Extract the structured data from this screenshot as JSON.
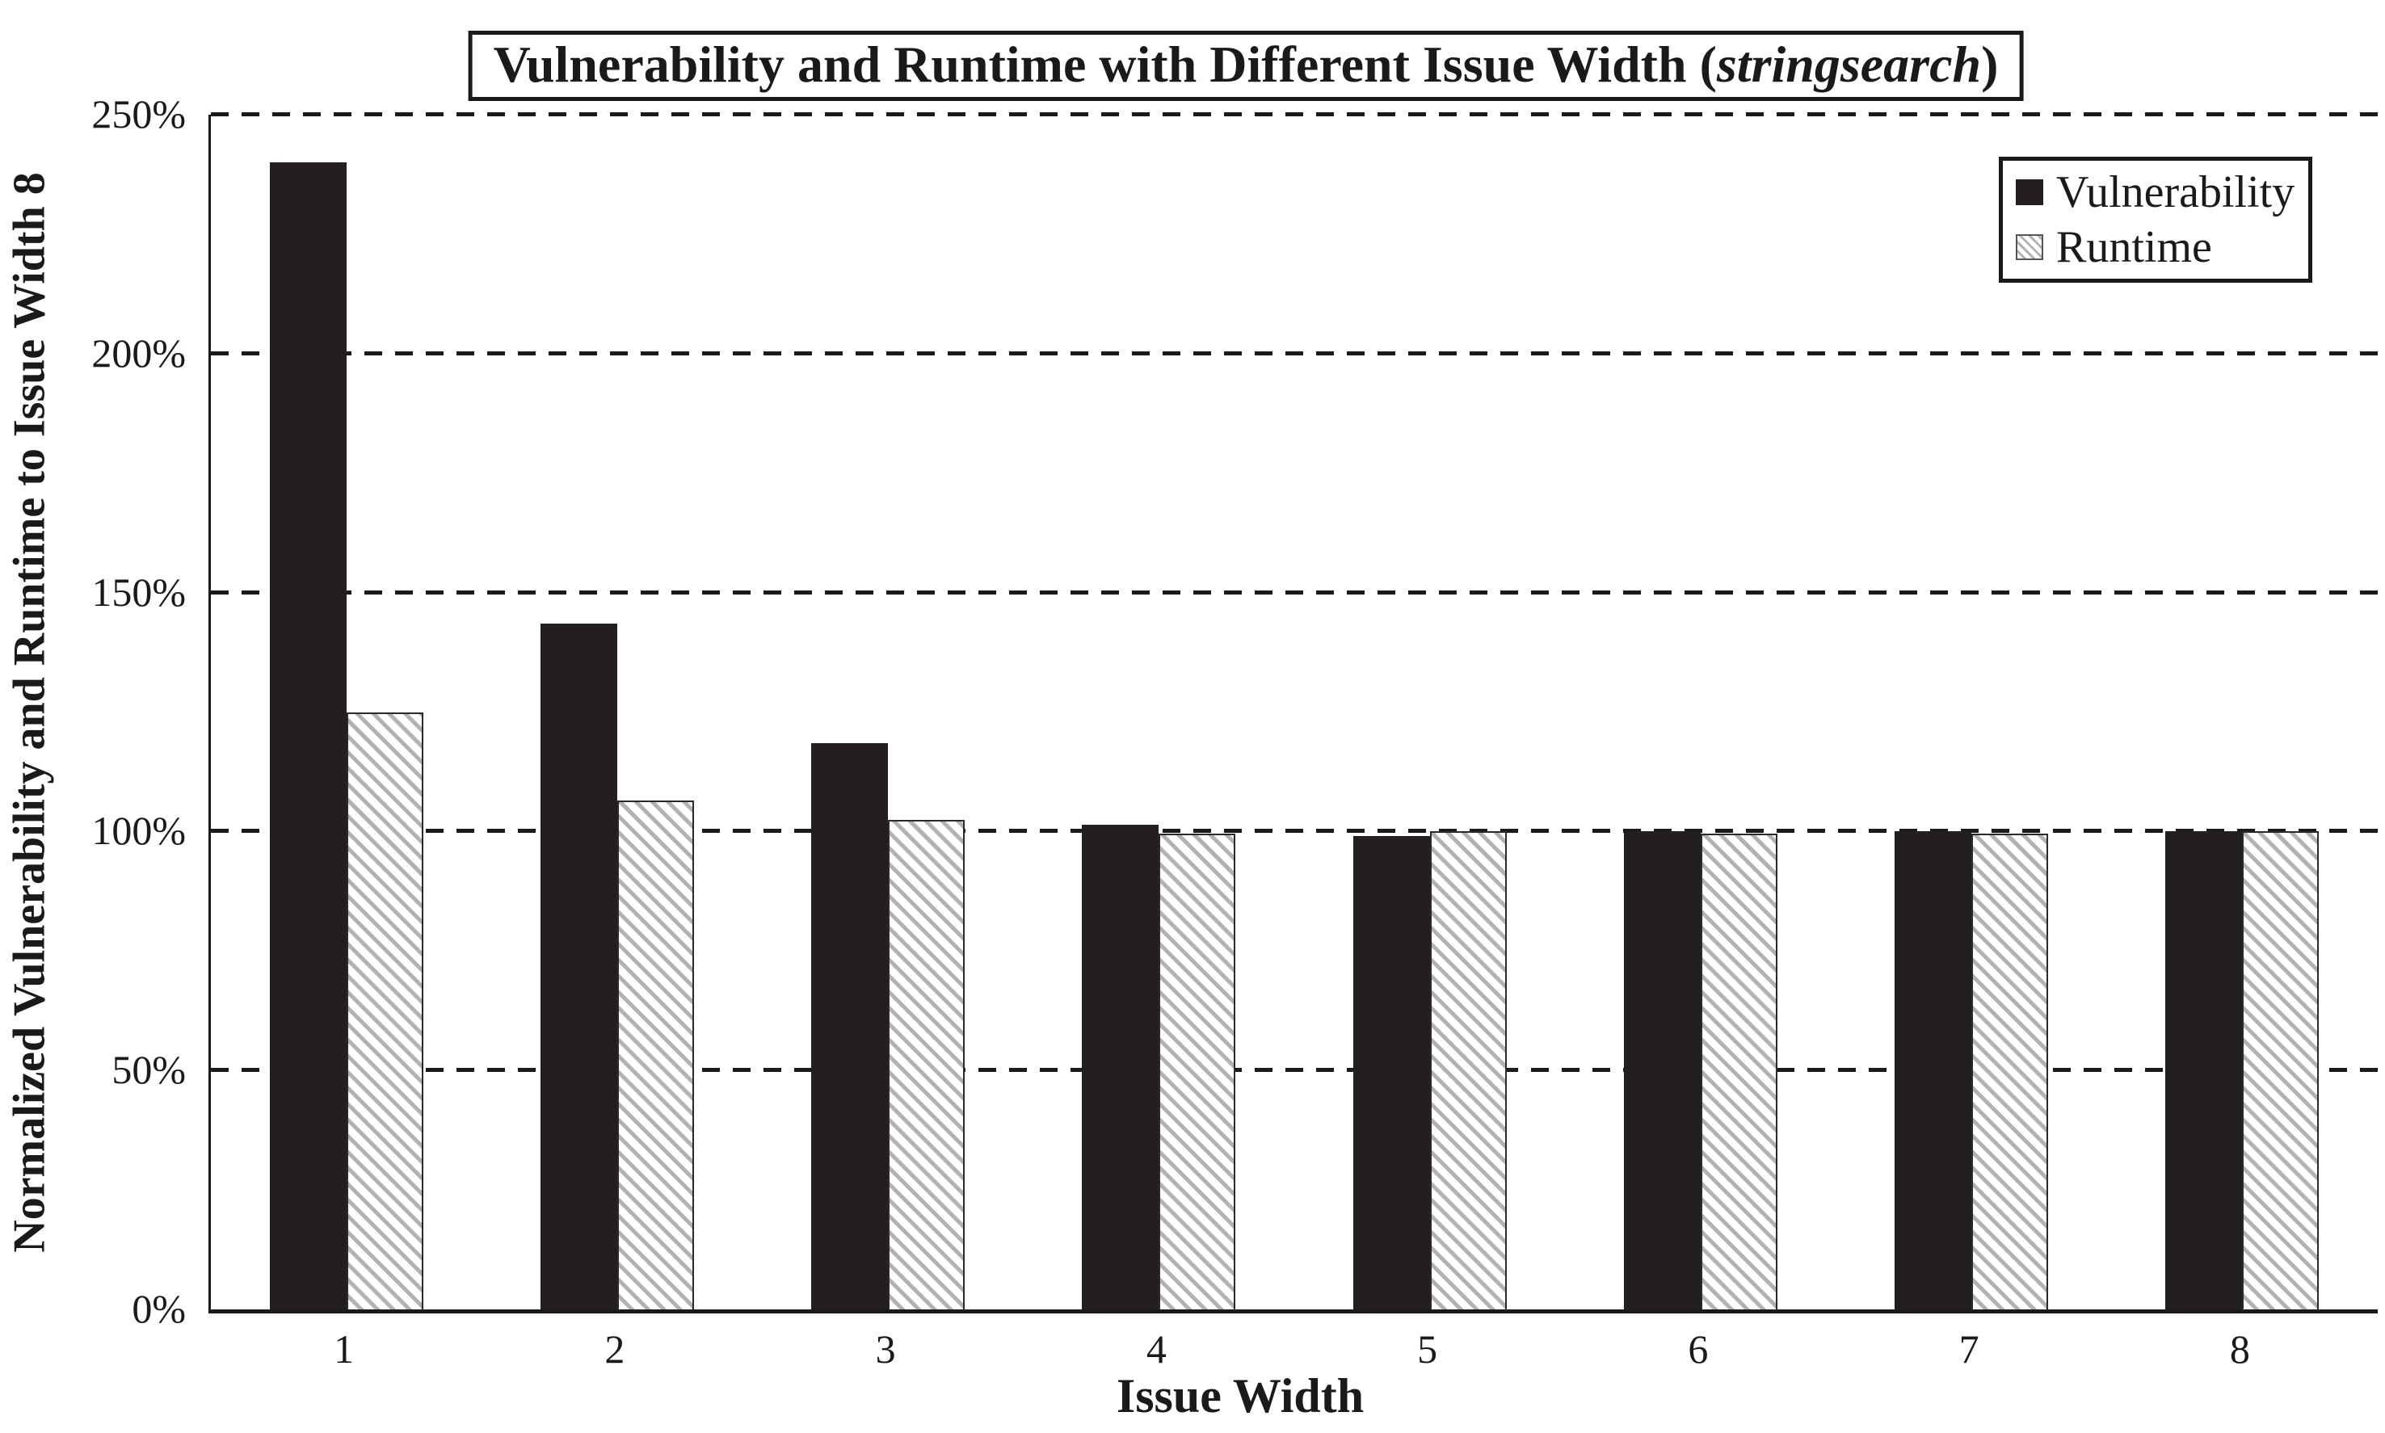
{
  "figure": {
    "title": {
      "prefix": "Vulnerability and Runtime with Different Issue Width (",
      "emphasis": "stringsearch",
      "suffix": ")"
    },
    "colors": {
      "foreground": "#1a1a1a",
      "bar_solid": "#231f20",
      "hatch_line": "#b2b2b2",
      "background": "#ffffff"
    }
  },
  "chart_data": {
    "type": "bar",
    "title": "Vulnerability and Runtime with Different Issue Width (stringsearch)",
    "title_emphasis_word": "stringsearch",
    "xlabel": "Issue Width",
    "ylabel": "Normalized Vulnerability and Runtime to Issue Width 8",
    "categories": [
      "1",
      "2",
      "3",
      "4",
      "5",
      "6",
      "7",
      "8"
    ],
    "series": [
      {
        "name": "Vulnerability",
        "style": "solid-black",
        "values_pct": [
          240,
          143.5,
          118.5,
          101.5,
          99,
          100,
          100,
          100
        ]
      },
      {
        "name": "Runtime",
        "style": "hatched-diagonal",
        "values_pct": [
          125,
          106.5,
          102.5,
          99.5,
          100,
          99.5,
          99.5,
          100
        ]
      }
    ],
    "ylim_pct": [
      0,
      250
    ],
    "ytick_values_pct": [
      0,
      50,
      100,
      150,
      200,
      250
    ],
    "ytick_labels": [
      "0%",
      "50%",
      "100%",
      "150%",
      "200%",
      "250%"
    ],
    "grid": "horizontal-dashed",
    "legend": {
      "position": "top-right",
      "entries": [
        "Vulnerability",
        "Runtime"
      ]
    }
  }
}
